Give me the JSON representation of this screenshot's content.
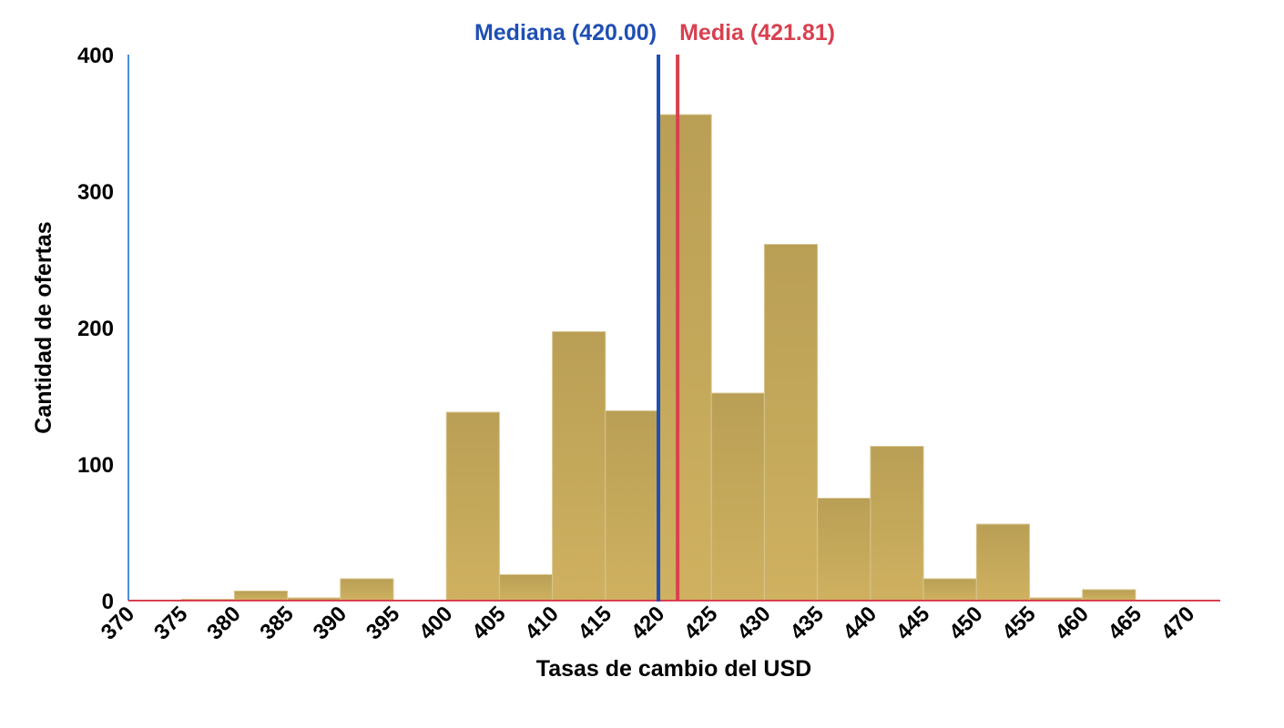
{
  "chart_data": {
    "type": "bar",
    "subtype": "histogram",
    "xlabel": "Tasas de cambio del USD",
    "ylabel": "Cantidad de ofertas",
    "xlim": [
      370,
      473
    ],
    "ylim": [
      0,
      400
    ],
    "x_ticks": [
      "370",
      "375",
      "380",
      "385",
      "390",
      "395",
      "400",
      "405",
      "410",
      "415",
      "420",
      "425",
      "430",
      "435",
      "440",
      "445",
      "450",
      "455",
      "460",
      "465",
      "470"
    ],
    "y_ticks": [
      "0",
      "100",
      "200",
      "300",
      "400"
    ],
    "bins": [
      {
        "start": 370,
        "end": 375,
        "count": 0
      },
      {
        "start": 375,
        "end": 380,
        "count": 1
      },
      {
        "start": 380,
        "end": 385,
        "count": 7
      },
      {
        "start": 385,
        "end": 390,
        "count": 2
      },
      {
        "start": 390,
        "end": 395,
        "count": 16
      },
      {
        "start": 395,
        "end": 400,
        "count": 0
      },
      {
        "start": 400,
        "end": 405,
        "count": 138
      },
      {
        "start": 405,
        "end": 410,
        "count": 19
      },
      {
        "start": 410,
        "end": 415,
        "count": 197
      },
      {
        "start": 415,
        "end": 420,
        "count": 139
      },
      {
        "start": 420,
        "end": 425,
        "count": 356
      },
      {
        "start": 425,
        "end": 430,
        "count": 152
      },
      {
        "start": 430,
        "end": 435,
        "count": 261
      },
      {
        "start": 435,
        "end": 440,
        "count": 75
      },
      {
        "start": 440,
        "end": 445,
        "count": 113
      },
      {
        "start": 445,
        "end": 450,
        "count": 16
      },
      {
        "start": 450,
        "end": 455,
        "count": 56
      },
      {
        "start": 455,
        "end": 460,
        "count": 2
      },
      {
        "start": 460,
        "end": 465,
        "count": 8
      },
      {
        "start": 465,
        "end": 470,
        "count": 0
      }
    ],
    "reference_lines": [
      {
        "key": "median",
        "label": "Mediana (420.00)",
        "value": 420.0,
        "color": "#1f4fb4"
      },
      {
        "key": "mean",
        "label": "Media (421.81)",
        "value": 421.81,
        "color": "#d9404f"
      }
    ],
    "colors": {
      "bar_top": "#b99f55",
      "bar_bottom": "#cfb160",
      "y_axis": "#4a90d9",
      "x_axis": "#d9404f"
    },
    "grid": false,
    "legend": "none"
  }
}
